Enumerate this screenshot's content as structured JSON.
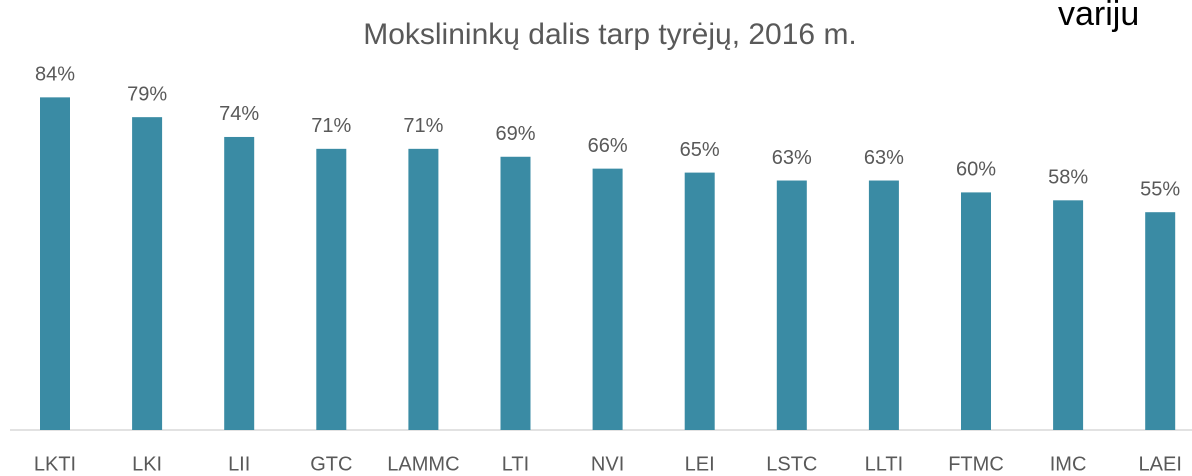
{
  "chart_data": {
    "type": "bar",
    "title": "Mokslininkų dalis tarp tyrėjų, 2016 m.",
    "annotation": "variju",
    "categories": [
      "LKTI",
      "LKI",
      "LII",
      "GTC",
      "LAMMC",
      "LTI",
      "NVI",
      "LEI",
      "LSTC",
      "LLTI",
      "FTMC",
      "IMC",
      "LAEI"
    ],
    "values": [
      84,
      79,
      74,
      71,
      71,
      69,
      66,
      65,
      63,
      63,
      60,
      58,
      55
    ],
    "value_labels": [
      "84%",
      "79%",
      "74%",
      "71%",
      "71%",
      "69%",
      "66%",
      "65%",
      "63%",
      "63%",
      "60%",
      "58%",
      "55%"
    ],
    "color": "#3a8ba4",
    "ylim": [
      0,
      100
    ]
  }
}
